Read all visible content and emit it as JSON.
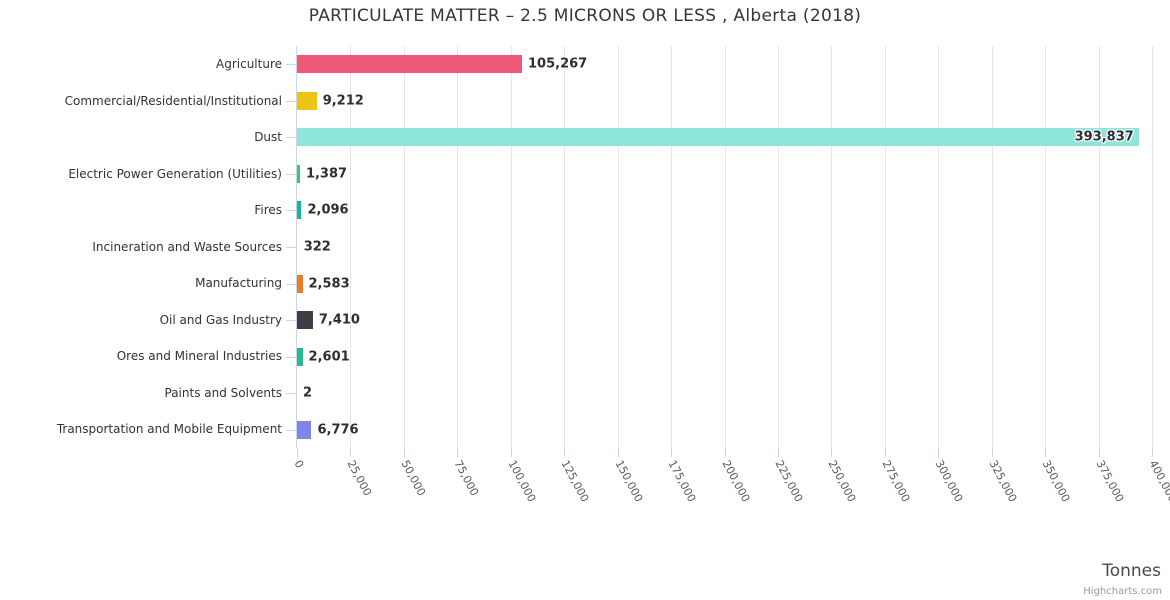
{
  "credit": "Highcharts.com",
  "style": {
    "grid_color": "#e6e6e6",
    "axis_color": "#ccd6eb",
    "title_color": "#35353f",
    "label_color": "#333333",
    "data_label_color": "#2d2d33",
    "tick_label_color": "#5c5c61"
  },
  "chart_data": {
    "type": "bar",
    "orientation": "horizontal",
    "title": "PARTICULATE MATTER – 2.5 MICRONS OR LESS , Alberta (2018)",
    "xlabel": "Tonnes",
    "ylabel": "",
    "legend": "none",
    "grid": true,
    "xlim": [
      0,
      400000
    ],
    "tick_interval": 25000,
    "tick_labels": [
      "0",
      "25,000",
      "50,000",
      "75,000",
      "100,000",
      "125,000",
      "150,000",
      "175,000",
      "200,000",
      "225,000",
      "250,000",
      "275,000",
      "300,000",
      "325,000",
      "350,000",
      "375,000",
      "400,000"
    ],
    "categories": [
      "Agriculture",
      "Commercial/Residential/Institutional",
      "Dust",
      "Electric Power Generation (Utilities)",
      "Fires",
      "Incineration and Waste Sources",
      "Manufacturing",
      "Oil and Gas Industry",
      "Ores and Mineral Industries",
      "Paints and Solvents",
      "Transportation and Mobile Equipment"
    ],
    "values": [
      105267,
      9212,
      393837,
      1387,
      2096,
      322,
      2583,
      7410,
      2601,
      2,
      6776
    ],
    "value_labels": [
      "105,267",
      "9,212",
      "393,837",
      "1,387",
      "2,096",
      "322",
      "2,583",
      "7,410",
      "2,601",
      "2",
      "6,776"
    ],
    "colors": [
      "#ee5879",
      "#ecc414",
      "#8fe5d9",
      "#40c078",
      "#15b3a2",
      "#b0b0b0",
      "#e87f24",
      "#3e3e46",
      "#28b98e",
      "#b0b0b0",
      "#8185e8"
    ]
  }
}
